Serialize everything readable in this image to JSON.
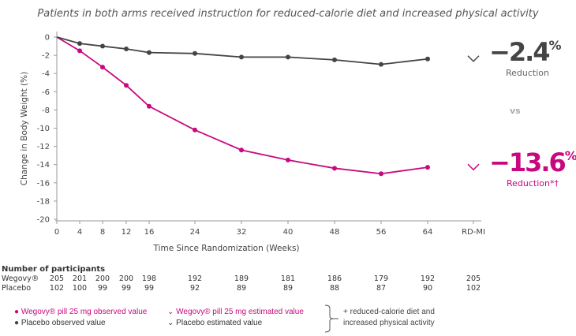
{
  "title": "Patients in both arms received instruction for reduced-calorie diet and increased physical activity",
  "colors": {
    "wegovy": "#c8087e",
    "placebo": "#444444",
    "vs": "#aaaaaa"
  },
  "chart_data": {
    "type": "line",
    "xlabel": "Time Since Randomization (Weeks)",
    "ylabel": "Change in Body Weight (%)",
    "ylim": [
      -20,
      0
    ],
    "yticks": [
      0,
      -2,
      -4,
      -6,
      -8,
      -10,
      -12,
      -14,
      -16,
      -18,
      -20
    ],
    "x_ticks": [
      "0",
      "4",
      "8",
      "12",
      "16",
      "24",
      "32",
      "40",
      "48",
      "56",
      "64",
      "RD-MI"
    ],
    "x": [
      0,
      4,
      8,
      12,
      16,
      24,
      32,
      40,
      48,
      56,
      64
    ],
    "grid": false,
    "series": [
      {
        "name": "Wegovy® pill 25 mg observed value",
        "color": "#c8087e",
        "values": [
          0,
          -1.5,
          -3.3,
          -5.3,
          -7.6,
          -10.2,
          -12.4,
          -13.5,
          -14.4,
          -15.0,
          -14.3
        ]
      },
      {
        "name": "Placebo observed value",
        "color": "#444444",
        "values": [
          0,
          -0.7,
          -1.0,
          -1.3,
          -1.7,
          -1.8,
          -2.2,
          -2.2,
          -2.5,
          -3.0,
          -2.4
        ]
      }
    ]
  },
  "results": {
    "placebo_value": "−2.4",
    "placebo_pct": "%",
    "placebo_label": "Reduction",
    "vs": "vs",
    "wegovy_value": "−13.6",
    "wegovy_pct": "%",
    "wegovy_label": "Reduction*†"
  },
  "participants": {
    "header": "Number of participants",
    "rows": [
      {
        "label": "Wegovy®",
        "values": [
          "205",
          "201",
          "200",
          "200",
          "198",
          "192",
          "189",
          "181",
          "186",
          "179",
          "192",
          "205"
        ]
      },
      {
        "label": "Placebo",
        "values": [
          "102",
          "100",
          "99",
          "99",
          "99",
          "92",
          "89",
          "89",
          "88",
          "87",
          "90",
          "102"
        ]
      }
    ]
  },
  "legend": {
    "wegovy_observed": "Wegovy® pill 25 mg observed value",
    "wegovy_estimated": "Wegovy® pill 25 mg estimated value",
    "placebo_observed": "Placebo observed value",
    "placebo_estimated": "Placebo estimated value",
    "note_line1": "+ reduced-calorie diet and",
    "note_line2": "increased physical activity"
  }
}
